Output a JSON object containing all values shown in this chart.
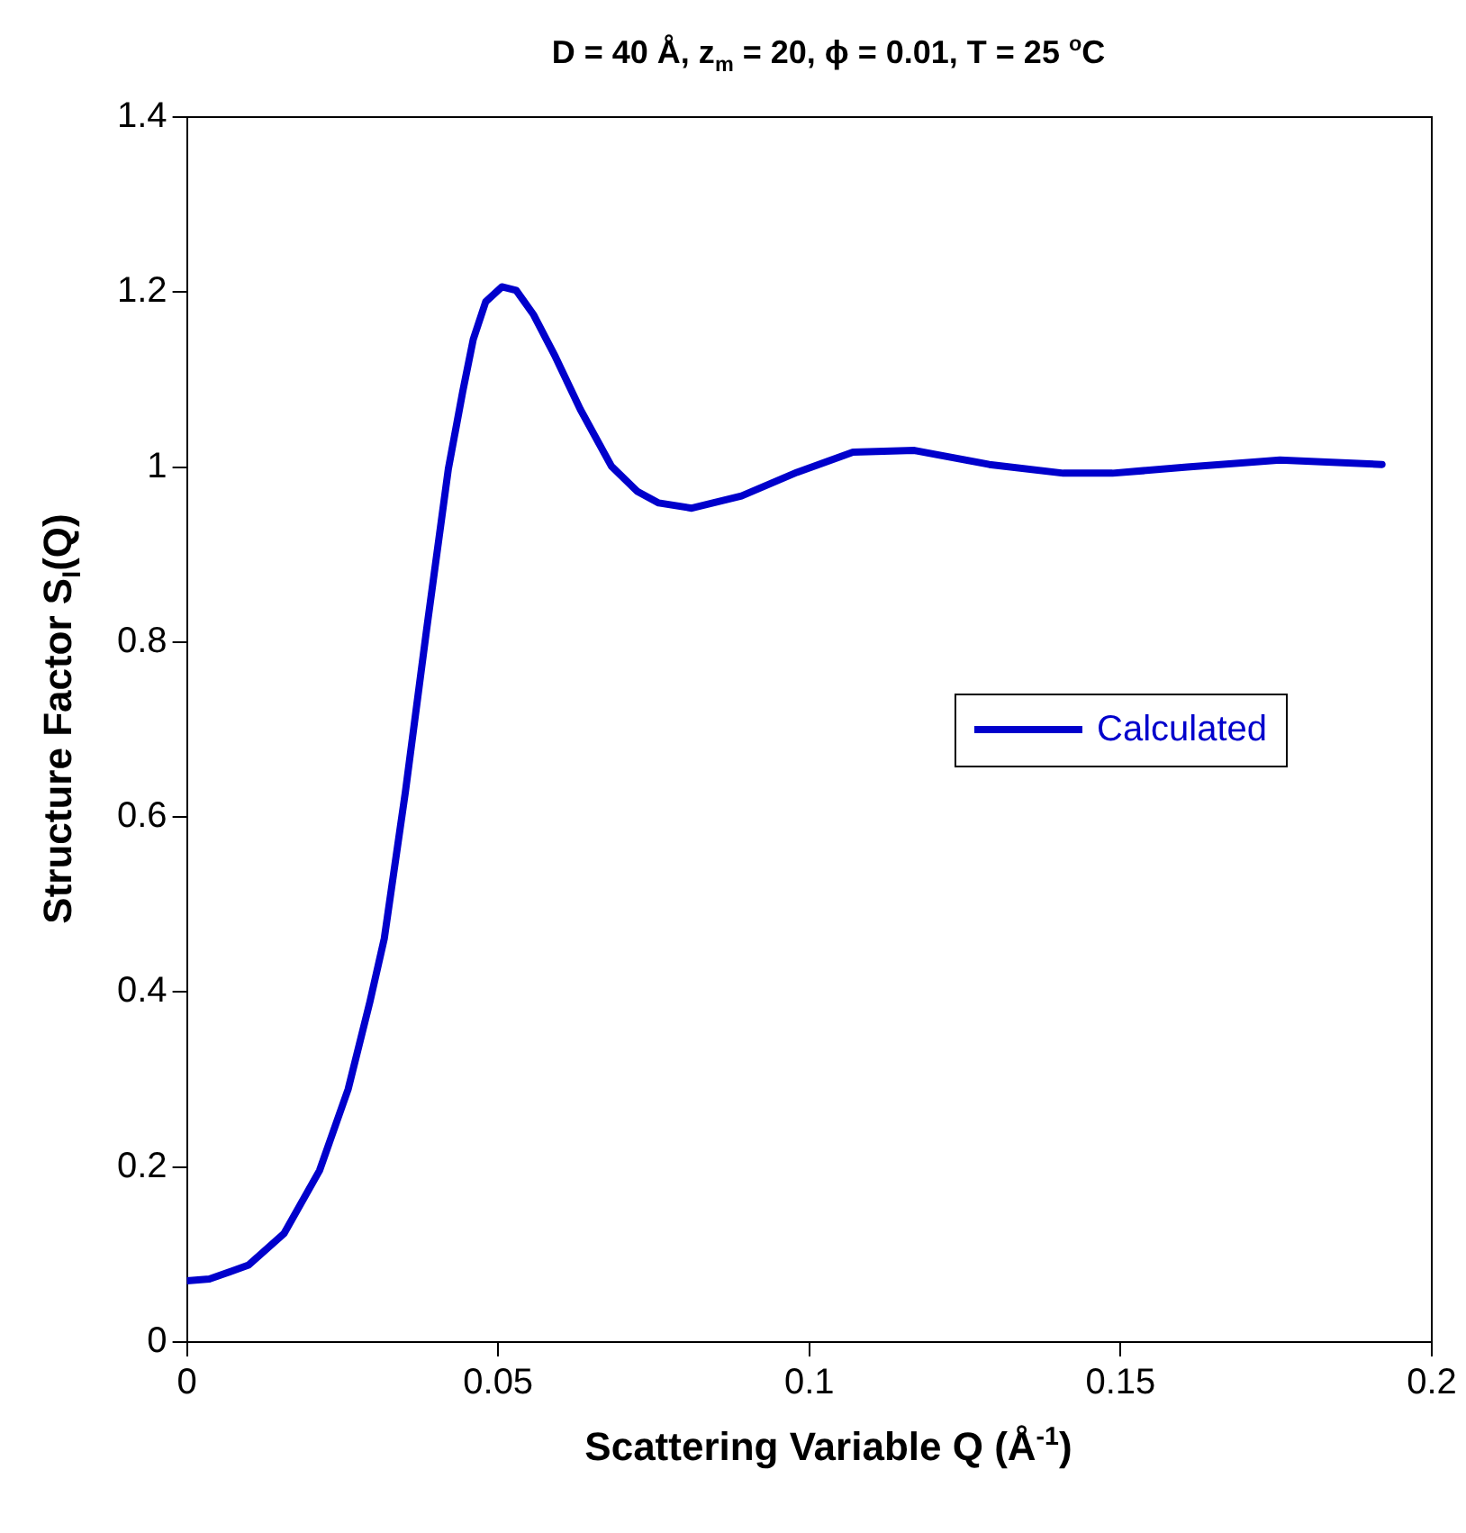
{
  "chart_data": {
    "type": "line",
    "title": "D = 40 Å, z$_{m}$ = 20, ϕ = 0.01, T = 25 $^{o}$C",
    "xlabel": "Scattering Variable Q (Å$^{-1}$)",
    "ylabel": "Structure Factor S$_{I}$(Q)",
    "x": [
      0,
      0.0036,
      0.0099,
      0.0156,
      0.0213,
      0.0259,
      0.0294,
      0.0317,
      0.0351,
      0.0385,
      0.042,
      0.0443,
      0.046,
      0.048,
      0.0506,
      0.0529,
      0.0557,
      0.0592,
      0.0632,
      0.0682,
      0.0724,
      0.0758,
      0.0811,
      0.0891,
      0.098,
      0.107,
      0.1169,
      0.1289,
      0.1408,
      0.1487,
      0.1607,
      0.1756,
      0.192
    ],
    "series": [
      {
        "name": "Calculated",
        "color": "#0000cc",
        "values": [
          0.07,
          0.072,
          0.088,
          0.124,
          0.196,
          0.289,
          0.389,
          0.461,
          0.629,
          0.814,
          0.998,
          1.086,
          1.146,
          1.189,
          1.206,
          1.202,
          1.174,
          1.126,
          1.066,
          1.001,
          0.972,
          0.959,
          0.953,
          0.967,
          0.994,
          1.017,
          1.019,
          1.003,
          0.993,
          0.993,
          1.0,
          1.008,
          1.003
        ]
      }
    ],
    "xlim": [
      0,
      0.2
    ],
    "xticks": [
      0,
      0.05,
      0.1,
      0.15,
      0.2
    ],
    "ylim": [
      0,
      1.4
    ],
    "yticks": [
      0,
      0.2,
      0.4,
      0.6,
      0.8,
      1,
      1.2,
      1.4
    ],
    "grid": false,
    "legend": "right",
    "marker": "none",
    "line_style": "solid"
  }
}
